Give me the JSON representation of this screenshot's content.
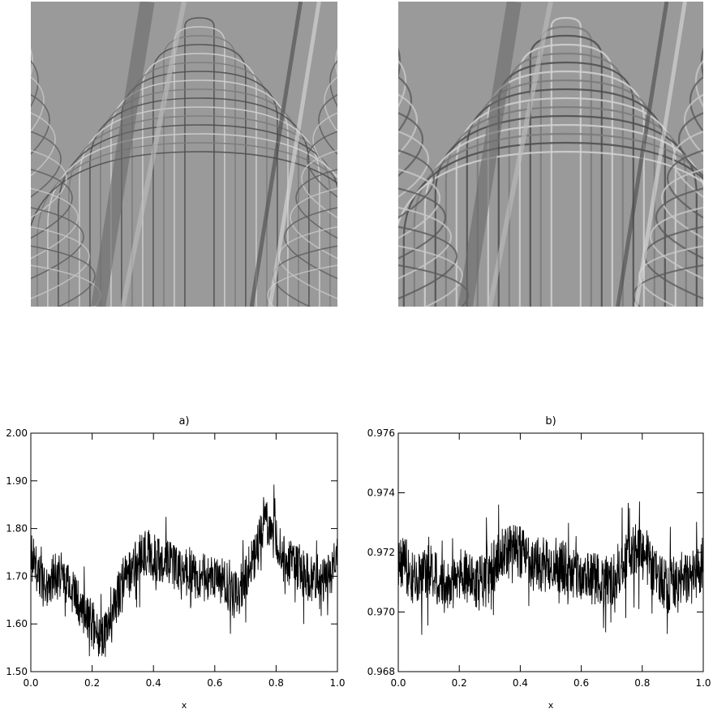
{
  "images": [
    {
      "id": "left",
      "description_key": "fringe-pattern-a"
    },
    {
      "id": "right",
      "description_key": "fringe-pattern-b"
    }
  ],
  "chart_data": [
    {
      "type": "line",
      "title": "a)",
      "xlabel": "x",
      "ylabel": "",
      "xlim": [
        0.0,
        1.0
      ],
      "ylim": [
        1.5,
        2.0
      ],
      "x_ticks": [
        "0.0",
        "0.2",
        "0.4",
        "0.6",
        "0.8",
        "1.0"
      ],
      "y_ticks": [
        "1.50",
        "1.60",
        "1.70",
        "1.80",
        "1.90",
        "2.00"
      ],
      "series": [
        {
          "x": [
            0.0,
            0.02,
            0.04,
            0.06,
            0.08,
            0.1,
            0.12,
            0.14,
            0.16,
            0.18,
            0.2,
            0.22,
            0.24,
            0.26,
            0.28,
            0.3,
            0.32,
            0.34,
            0.36,
            0.38,
            0.4,
            0.42,
            0.44,
            0.46,
            0.48,
            0.5,
            0.52,
            0.54,
            0.56,
            0.58,
            0.6,
            0.62,
            0.64,
            0.66,
            0.68,
            0.7,
            0.72,
            0.74,
            0.76,
            0.78,
            0.8,
            0.82,
            0.84,
            0.86,
            0.88,
            0.9,
            0.92,
            0.94,
            0.96,
            0.98,
            1.0
          ],
          "y": [
            1.74,
            1.72,
            1.68,
            1.69,
            1.7,
            1.7,
            1.69,
            1.66,
            1.64,
            1.62,
            1.6,
            1.58,
            1.57,
            1.6,
            1.65,
            1.69,
            1.71,
            1.73,
            1.74,
            1.75,
            1.74,
            1.73,
            1.74,
            1.72,
            1.71,
            1.72,
            1.71,
            1.7,
            1.7,
            1.69,
            1.7,
            1.69,
            1.68,
            1.66,
            1.67,
            1.7,
            1.73,
            1.76,
            1.82,
            1.81,
            1.77,
            1.75,
            1.73,
            1.72,
            1.71,
            1.7,
            1.69,
            1.68,
            1.69,
            1.71,
            1.74
          ],
          "noise": 0.05
        }
      ]
    },
    {
      "type": "line",
      "title": "b)",
      "xlabel": "x",
      "ylabel": "",
      "xlim": [
        0.0,
        1.0
      ],
      "ylim": [
        0.968,
        0.976
      ],
      "x_ticks": [
        "0.0",
        "0.2",
        "0.4",
        "0.6",
        "0.8",
        "1.0"
      ],
      "y_ticks": [
        "0.968",
        "0.970",
        "0.972",
        "0.974",
        "0.976"
      ],
      "series": [
        {
          "x": [
            0.0,
            0.02,
            0.04,
            0.06,
            0.08,
            0.1,
            0.12,
            0.14,
            0.16,
            0.18,
            0.2,
            0.22,
            0.24,
            0.26,
            0.28,
            0.3,
            0.32,
            0.34,
            0.36,
            0.38,
            0.4,
            0.42,
            0.44,
            0.46,
            0.48,
            0.5,
            0.52,
            0.54,
            0.56,
            0.58,
            0.6,
            0.62,
            0.64,
            0.66,
            0.68,
            0.7,
            0.72,
            0.74,
            0.76,
            0.78,
            0.8,
            0.82,
            0.84,
            0.86,
            0.88,
            0.9,
            0.92,
            0.94,
            0.96,
            0.98,
            1.0
          ],
          "y": [
            0.9718,
            0.9716,
            0.9712,
            0.971,
            0.9712,
            0.9714,
            0.9712,
            0.9709,
            0.9708,
            0.971,
            0.9712,
            0.9713,
            0.971,
            0.9709,
            0.9711,
            0.9714,
            0.9716,
            0.9719,
            0.9721,
            0.9722,
            0.972,
            0.9718,
            0.9716,
            0.9716,
            0.9715,
            0.9716,
            0.9716,
            0.9715,
            0.9714,
            0.9713,
            0.9712,
            0.9712,
            0.9711,
            0.971,
            0.971,
            0.9711,
            0.9714,
            0.9716,
            0.972,
            0.9721,
            0.9719,
            0.9717,
            0.9713,
            0.9711,
            0.9709,
            0.971,
            0.9708,
            0.971,
            0.9711,
            0.9714,
            0.9717
          ],
          "noise": 0.0009
        }
      ]
    }
  ]
}
